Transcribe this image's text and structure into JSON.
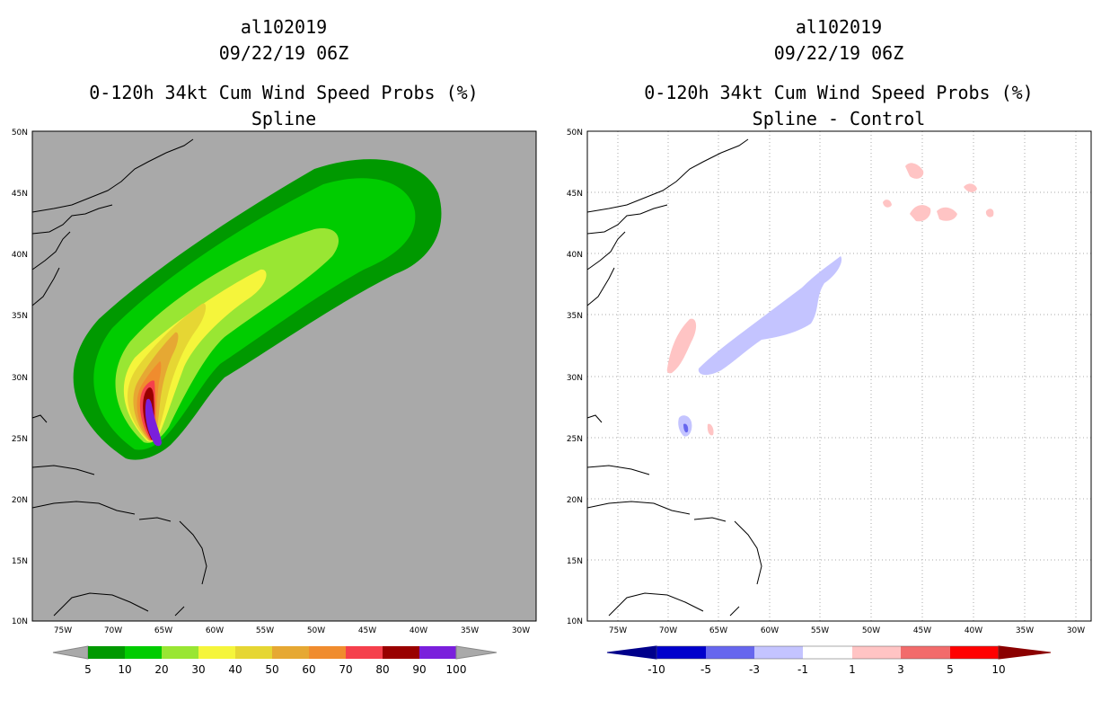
{
  "left_panel": {
    "storm_id": "al102019",
    "datetime": "09/22/19 06Z",
    "title": "0-120h 34kt Cum Wind Speed Probs (%)",
    "subtitle": "Spline"
  },
  "right_panel": {
    "storm_id": "al102019",
    "datetime": "09/22/19 06Z",
    "title": "0-120h 34kt Cum Wind Speed Probs (%)",
    "subtitle": "Spline - Control"
  },
  "axes": {
    "lon_labels": [
      "75W",
      "70W",
      "65W",
      "60W",
      "55W",
      "50W",
      "45W",
      "40W",
      "35W",
      "30W"
    ],
    "lat_labels": [
      "50N",
      "45N",
      "40N",
      "35N",
      "30N",
      "25N",
      "20N",
      "15N",
      "10N"
    ]
  },
  "left_legend": {
    "labels": [
      "5",
      "10",
      "20",
      "30",
      "40",
      "50",
      "60",
      "70",
      "80",
      "90",
      "100"
    ],
    "colors": [
      "#009900",
      "#00cc00",
      "#99e633",
      "#f5f53b",
      "#e6d633",
      "#e6a833",
      "#f08c2e",
      "#f5404c",
      "#990000",
      "#7a1fdc"
    ]
  },
  "right_legend": {
    "labels": [
      "-10",
      "-5",
      "-3",
      "-1",
      "1",
      "3",
      "5",
      "10"
    ],
    "colors": [
      "#0000cc",
      "#6666ee",
      "#c4c4ff",
      "#ffffff",
      "#ffc4c4",
      "#f26b6b",
      "#ff0000",
      "#8b0000"
    ]
  }
}
